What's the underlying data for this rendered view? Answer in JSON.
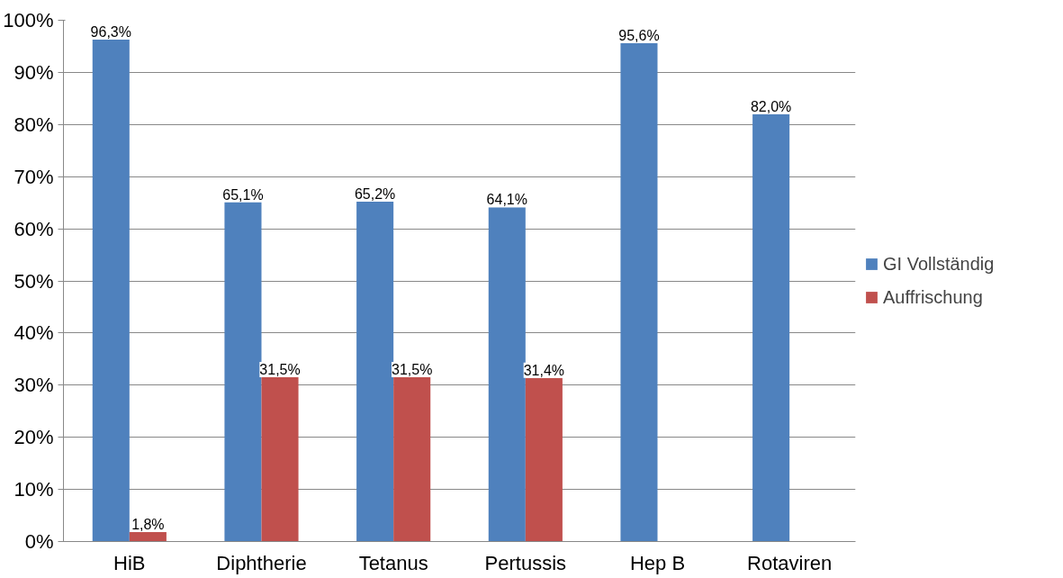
{
  "chart_data": {
    "type": "bar",
    "categories": [
      "HiB",
      "Diphtherie",
      "Tetanus",
      "Pertussis",
      "Hep B",
      "Rotaviren"
    ],
    "series": [
      {
        "name": "GI Vollständig",
        "color": "#4f81bd",
        "values": [
          96.3,
          65.1,
          65.2,
          64.1,
          95.6,
          82.0
        ],
        "value_labels": [
          "96,3%",
          "65,1%",
          "65,2%",
          "64,1%",
          "95,6%",
          "82,0%"
        ]
      },
      {
        "name": "Auffrischung",
        "color": "#c0504d",
        "values": [
          1.8,
          31.5,
          31.5,
          31.4,
          null,
          null
        ],
        "value_labels": [
          "1,8%",
          "31,5%",
          "31,5%",
          "31,4%",
          null,
          null
        ]
      }
    ],
    "ylim": [
      0,
      100
    ],
    "yticks": [
      {
        "value": 0,
        "label": "0%"
      },
      {
        "value": 10,
        "label": "10%"
      },
      {
        "value": 20,
        "label": "20%"
      },
      {
        "value": 30,
        "label": "30%"
      },
      {
        "value": 40,
        "label": "40%"
      },
      {
        "value": 50,
        "label": "50%"
      },
      {
        "value": 60,
        "label": "60%"
      },
      {
        "value": 70,
        "label": "70%"
      },
      {
        "value": 80,
        "label": "80%"
      },
      {
        "value": 90,
        "label": "90%"
      },
      {
        "value": 100,
        "label": "100%"
      }
    ],
    "grid": "y",
    "legend": "right"
  }
}
